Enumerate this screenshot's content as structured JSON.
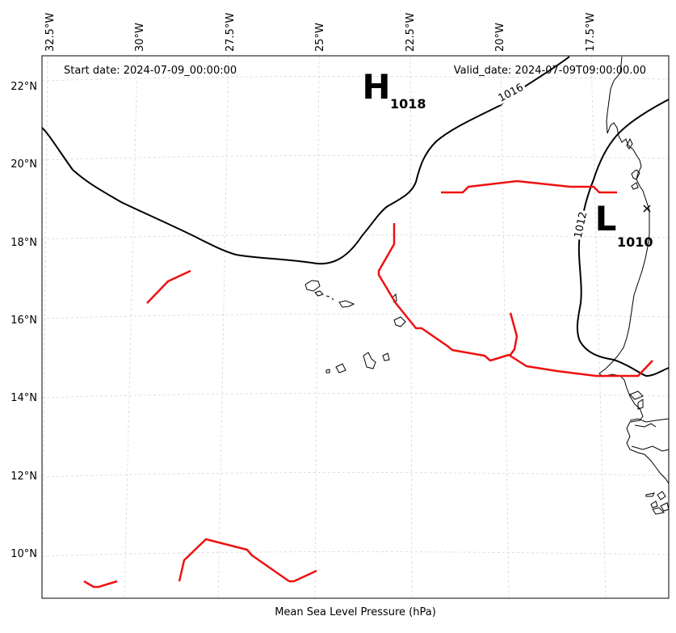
{
  "map": {
    "start_date": "Start date: 2024-07-09_00:00:00",
    "valid_date": "Valid_date: 2024-07-09T09:00:00.00",
    "caption": "Mean Sea Level Pressure (hPa)",
    "lon_ticks": [
      "32.5°W",
      "30°W",
      "27.5°W",
      "25°W",
      "22.5°W",
      "20°W",
      "17.5°W"
    ],
    "lat_ticks": [
      "22°N",
      "20°N",
      "18°N",
      "16°N",
      "14°N",
      "12°N",
      "10°N"
    ],
    "isobar_labels": [
      "1016",
      "1012"
    ],
    "high_center": {
      "symbol": "H",
      "value": "1018"
    },
    "low_center": {
      "symbol": "L",
      "value": "1010"
    },
    "colors": {
      "isobar": "#000000",
      "front": "#ee1111",
      "coastline": "#000000",
      "grid": "#cccccc"
    }
  }
}
